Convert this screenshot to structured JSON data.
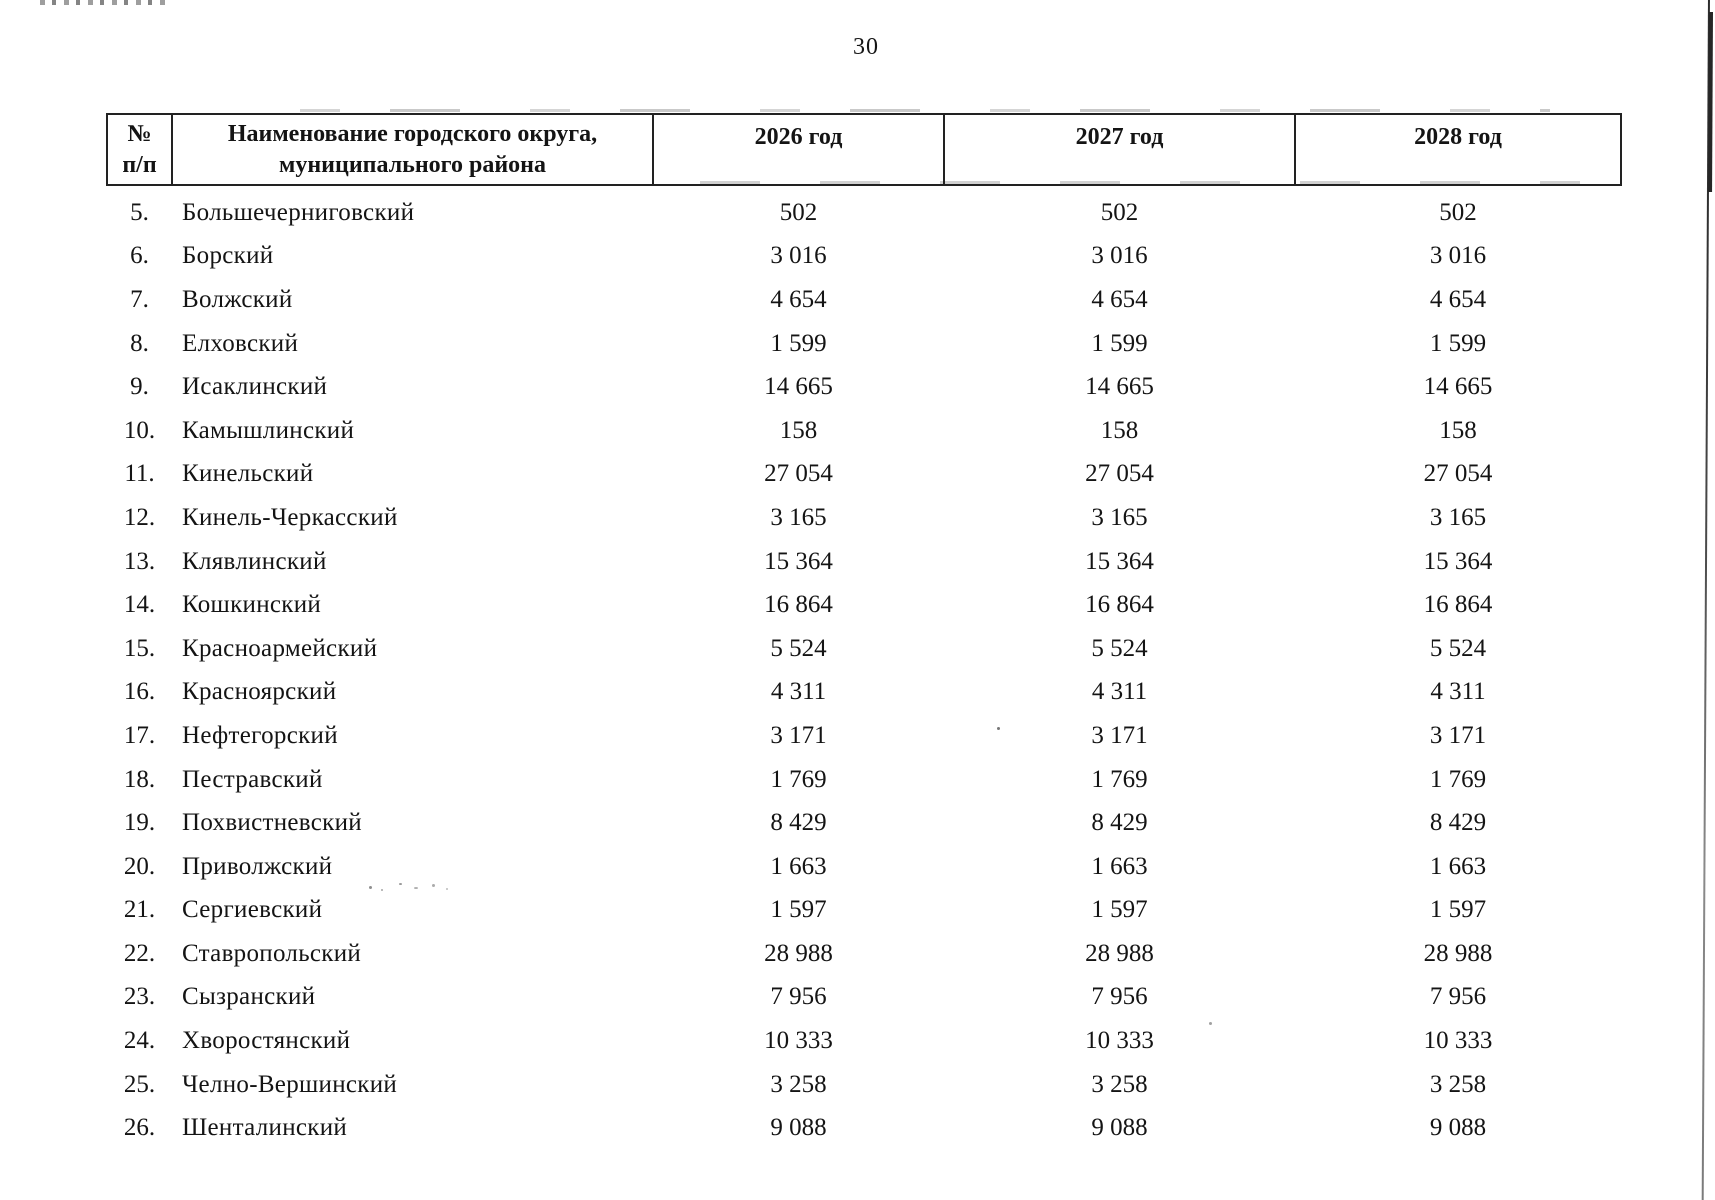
{
  "page": {
    "number": "30"
  },
  "table": {
    "headers": {
      "num_line1": "№",
      "num_line2": "п/п",
      "name_line1": "Наименование городского округа,",
      "name_line2": "муниципального района",
      "year_2026": "2026 год",
      "year_2027": "2027 год",
      "year_2028": "2028 год"
    },
    "rows": [
      {
        "num": "5.",
        "name": "Большечерниговский",
        "y2026": "502",
        "y2027": "502",
        "y2028": "502"
      },
      {
        "num": "6.",
        "name": "Борский",
        "y2026": "3 016",
        "y2027": "3 016",
        "y2028": "3 016"
      },
      {
        "num": "7.",
        "name": "Волжский",
        "y2026": "4 654",
        "y2027": "4 654",
        "y2028": "4 654"
      },
      {
        "num": "8.",
        "name": "Елховский",
        "y2026": "1 599",
        "y2027": "1 599",
        "y2028": "1 599"
      },
      {
        "num": "9.",
        "name": "Исаклинский",
        "y2026": "14 665",
        "y2027": "14 665",
        "y2028": "14 665"
      },
      {
        "num": "10.",
        "name": "Камышлинский",
        "y2026": "158",
        "y2027": "158",
        "y2028": "158"
      },
      {
        "num": "11.",
        "name": "Кинельский",
        "y2026": "27 054",
        "y2027": "27 054",
        "y2028": "27 054"
      },
      {
        "num": "12.",
        "name": "Кинель-Черкасский",
        "y2026": "3 165",
        "y2027": "3 165",
        "y2028": "3 165"
      },
      {
        "num": "13.",
        "name": "Клявлинский",
        "y2026": "15 364",
        "y2027": "15 364",
        "y2028": "15 364"
      },
      {
        "num": "14.",
        "name": "Кошкинский",
        "y2026": "16 864",
        "y2027": "16 864",
        "y2028": "16 864"
      },
      {
        "num": "15.",
        "name": "Красноармейский",
        "y2026": "5 524",
        "y2027": "5 524",
        "y2028": "5 524"
      },
      {
        "num": "16.",
        "name": "Красноярский",
        "y2026": "4 311",
        "y2027": "4 311",
        "y2028": "4 311"
      },
      {
        "num": "17.",
        "name": "Нефтегорский",
        "y2026": "3 171",
        "y2027": "3 171",
        "y2028": "3 171"
      },
      {
        "num": "18.",
        "name": "Пестравский",
        "y2026": "1 769",
        "y2027": "1 769",
        "y2028": "1 769"
      },
      {
        "num": "19.",
        "name": "Похвистневский",
        "y2026": "8 429",
        "y2027": "8 429",
        "y2028": "8 429"
      },
      {
        "num": "20.",
        "name": "Приволжский",
        "y2026": "1 663",
        "y2027": "1 663",
        "y2028": "1 663"
      },
      {
        "num": "21.",
        "name": "Сергиевский",
        "y2026": "1 597",
        "y2027": "1 597",
        "y2028": "1 597"
      },
      {
        "num": "22.",
        "name": "Ставропольский",
        "y2026": "28 988",
        "y2027": "28 988",
        "y2028": "28 988"
      },
      {
        "num": "23.",
        "name": "Сызранский",
        "y2026": "7 956",
        "y2027": "7 956",
        "y2028": "7 956"
      },
      {
        "num": "24.",
        "name": "Хворостянский",
        "y2026": "10 333",
        "y2027": "10 333",
        "y2028": "10 333"
      },
      {
        "num": "25.",
        "name": "Челно-Вершинский",
        "y2026": "3 258",
        "y2027": "3 258",
        "y2028": "3 258"
      },
      {
        "num": "26.",
        "name": "Шенталинский",
        "y2026": "9 088",
        "y2027": "9 088",
        "y2028": "9 088"
      }
    ]
  }
}
